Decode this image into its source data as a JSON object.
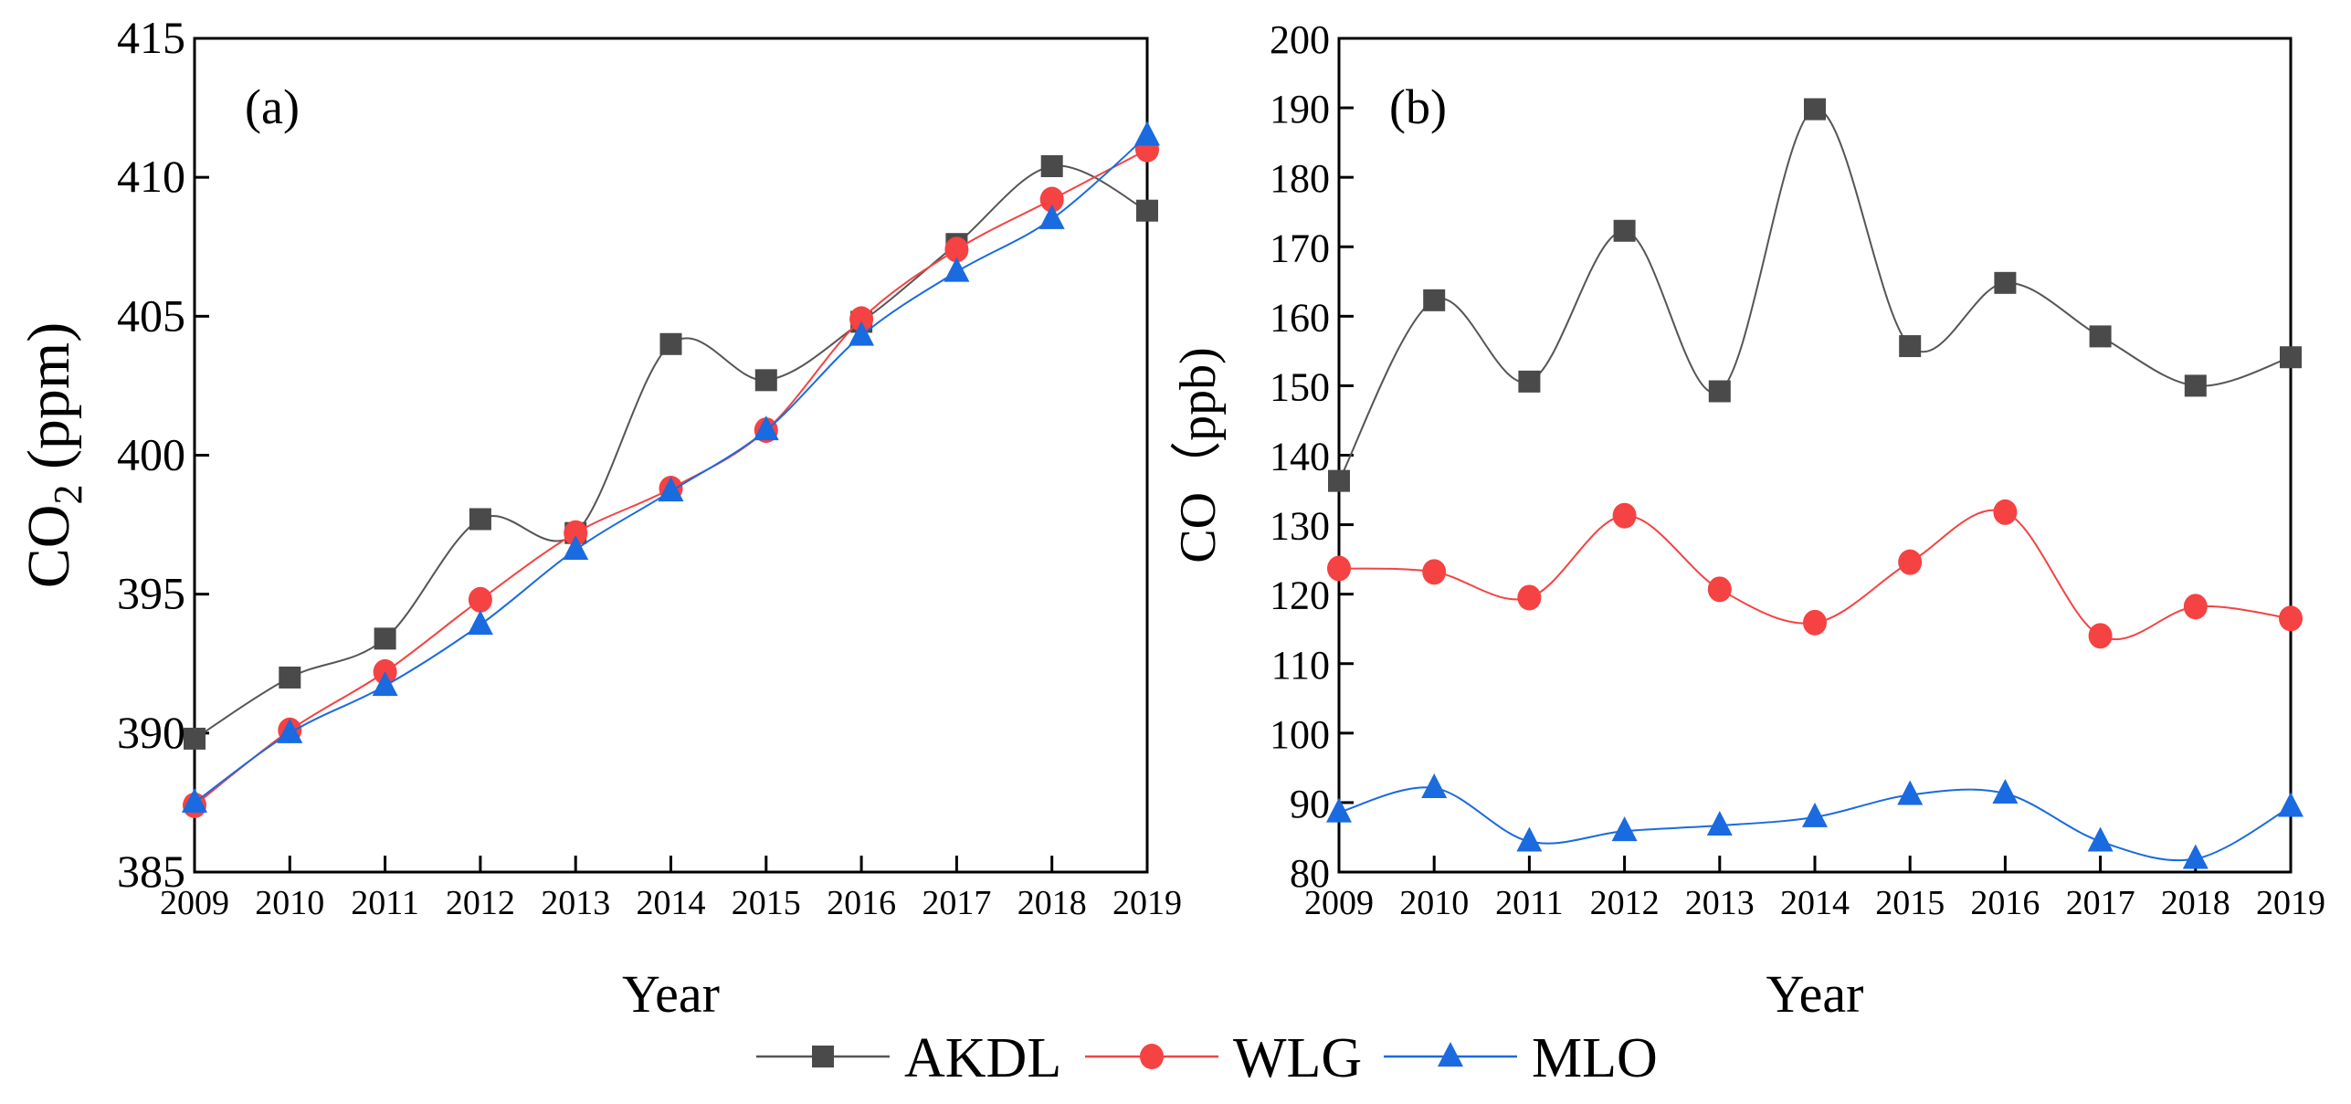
{
  "colors": {
    "AKDL": "#4a4a4a",
    "AKDL_line": "#555555",
    "WLG": "#f54242",
    "MLO": "#1a6ae0",
    "axis": "#000000"
  },
  "legend": {
    "placement": "bottom-center",
    "entries": [
      "AKDL",
      "WLG",
      "MLO"
    ]
  },
  "chart_data": [
    {
      "type": "line",
      "panel_label": "(a)",
      "xlabel": "Year",
      "ylabel": "CO2 (ppm)",
      "ylabel_main": "CO",
      "ylabel_sub": "2",
      "ylabel_unit": " (ppm)",
      "ylim": [
        385,
        415
      ],
      "yticks": [
        385,
        390,
        395,
        400,
        405,
        410,
        415
      ],
      "x": [
        2009,
        2010,
        2011,
        2012,
        2013,
        2014,
        2015,
        2016,
        2017,
        2018,
        2019
      ],
      "grid": false,
      "series": [
        {
          "name": "AKDL",
          "marker": "square",
          "values": [
            389.8,
            392.0,
            393.4,
            397.7,
            397.2,
            404.0,
            402.7,
            404.8,
            407.6,
            410.4,
            408.8
          ]
        },
        {
          "name": "WLG",
          "marker": "circle",
          "values": [
            387.4,
            390.1,
            392.2,
            394.8,
            397.2,
            398.8,
            400.9,
            404.9,
            407.4,
            409.2,
            411.0
          ]
        },
        {
          "name": "MLO",
          "marker": "triangle",
          "values": [
            387.5,
            390.0,
            391.7,
            393.9,
            396.6,
            398.7,
            400.9,
            404.3,
            406.6,
            408.5,
            411.5
          ]
        }
      ]
    },
    {
      "type": "line",
      "panel_label": "(b)",
      "xlabel": "Year",
      "ylabel": "CO （ppb)",
      "ylabel_main": "CO",
      "ylabel_sub": "",
      "ylabel_unit": "（ppb)",
      "ylim": [
        80,
        200
      ],
      "yticks": [
        80,
        90,
        100,
        110,
        120,
        130,
        140,
        150,
        160,
        170,
        180,
        190,
        200
      ],
      "x": [
        2009,
        2010,
        2011,
        2012,
        2013,
        2014,
        2015,
        2016,
        2017,
        2018,
        2019
      ],
      "grid": false,
      "series": [
        {
          "name": "AKDL",
          "marker": "square",
          "values": [
            136.3,
            162.3,
            150.6,
            172.3,
            149.2,
            189.8,
            155.7,
            164.8,
            157.1,
            150.0,
            154.1
          ]
        },
        {
          "name": "WLG",
          "marker": "circle",
          "values": [
            123.7,
            123.2,
            119.5,
            131.3,
            120.7,
            115.9,
            124.6,
            131.8,
            114.0,
            118.2,
            116.5
          ]
        },
        {
          "name": "MLO",
          "marker": "triangle",
          "values": [
            88.6,
            92.1,
            84.4,
            85.9,
            86.7,
            87.9,
            91.1,
            91.3,
            84.4,
            81.9,
            89.4
          ]
        }
      ]
    }
  ]
}
